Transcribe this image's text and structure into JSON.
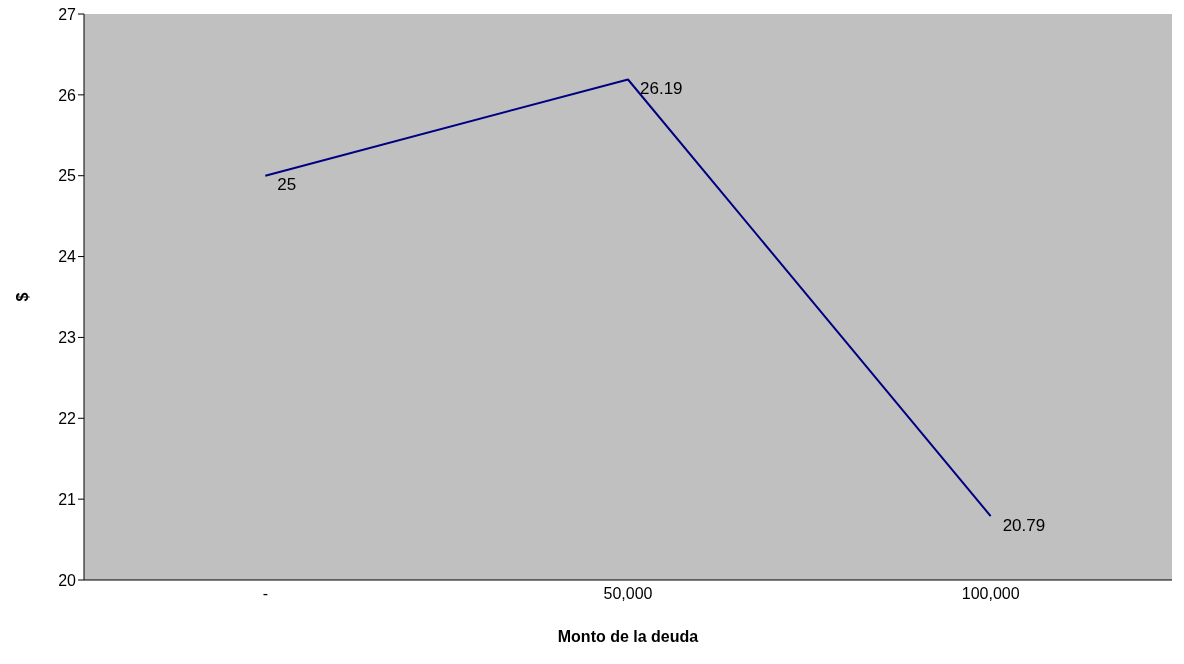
{
  "chart_data": {
    "type": "line",
    "xlabel": "Monto de la deuda",
    "ylabel": "$",
    "categories": [
      "-",
      "50,000",
      "100,000"
    ],
    "series": [
      {
        "color": "#000080",
        "values": [
          25,
          26.19,
          20.79
        ]
      }
    ],
    "ylim": [
      20,
      27
    ],
    "yticks": [
      20,
      21,
      22,
      23,
      24,
      25,
      26,
      27
    ],
    "data_labels": true,
    "grid": false,
    "legend": false,
    "marker": "none",
    "line_style": "solid"
  }
}
